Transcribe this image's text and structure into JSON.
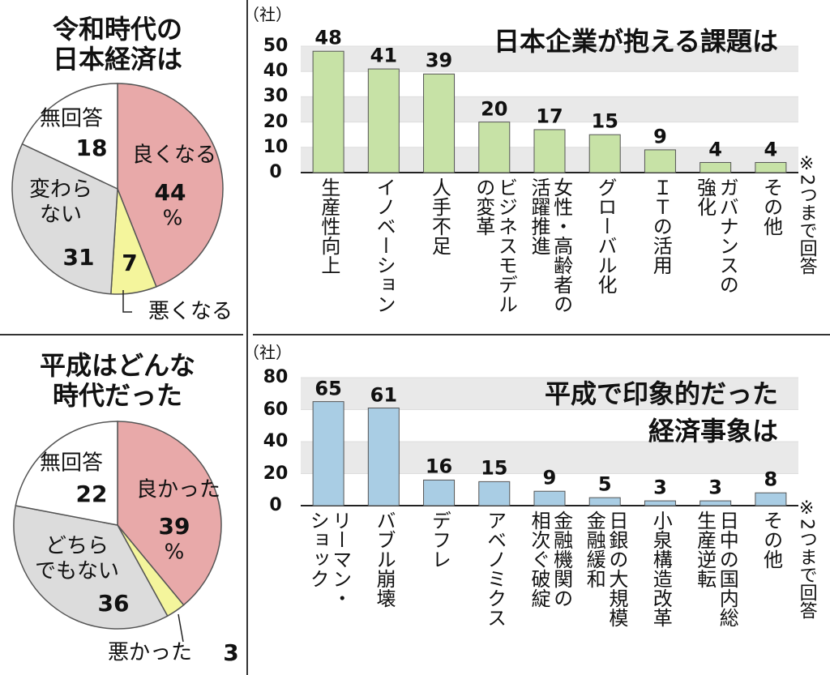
{
  "chart_data": [
    {
      "type": "pie",
      "title": "令和時代の\n日本経済は",
      "categories": [
        "良くなる",
        "悪くなる",
        "変わら\nない",
        "無回答"
      ],
      "values": [
        44,
        7,
        31,
        18
      ],
      "unit": "%",
      "colors": [
        "#e8a9a9",
        "#f4f59c",
        "#dcdcdc",
        "#ffffff"
      ]
    },
    {
      "type": "bar",
      "title": "日本企業が抱える課題は",
      "y_label": "（社）",
      "note": "※2つまで回答",
      "categories": [
        "生産性向上",
        "イノベーション",
        "人手不足",
        "ビジネスモデル\nの変革",
        "女性・高齢者の\n活躍推進",
        "グローバル化",
        "ＩＴの活用",
        "ガバナンスの\n強化",
        "その他"
      ],
      "values": [
        48,
        41,
        39,
        20,
        17,
        15,
        9,
        4,
        4
      ],
      "color": "#c7e2a6",
      "ylim": [
        0,
        50
      ],
      "yticks": [
        0,
        10,
        20,
        30,
        40,
        50
      ],
      "grid": true
    },
    {
      "type": "pie",
      "title": "平成はどんな\n時代だった",
      "categories": [
        "良かった",
        "悪かった",
        "どちら\nでもない",
        "無回答"
      ],
      "values": [
        39,
        3,
        36,
        22
      ],
      "unit": "%",
      "colors": [
        "#e8a9a9",
        "#f4f59c",
        "#dcdcdc",
        "#ffffff"
      ]
    },
    {
      "type": "bar",
      "title": "平成で印象的だった\n経済事象は",
      "y_label": "（社）",
      "note": "※2つまで回答",
      "categories": [
        "リーマン・\nショック",
        "バブル崩壊",
        "デフレ",
        "アベノミクス",
        "金融機関の\n相次ぐ破綻",
        "日銀の大規模\n金融緩和",
        "小泉構造改革",
        "日中の国内総\n生産逆転",
        "その他"
      ],
      "values": [
        65,
        61,
        16,
        15,
        9,
        5,
        3,
        3,
        8
      ],
      "color": "#a9cde4",
      "ylim": [
        0,
        80
      ],
      "yticks": [
        0,
        20,
        40,
        60,
        80
      ],
      "grid": true
    }
  ]
}
